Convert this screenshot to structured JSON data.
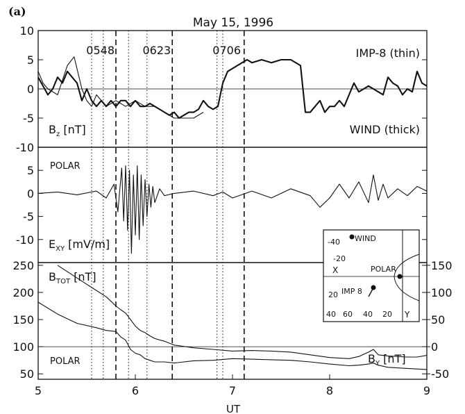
{
  "figure": {
    "panel_label": "(a)",
    "title": "May 15, 1996",
    "xlabel": "UT"
  },
  "colors": {
    "ink": "#111111",
    "background": "#ffffff"
  },
  "chart_data": {
    "type": "line",
    "x_unit": "hours UT",
    "xlim": [
      5,
      9
    ],
    "x_ticks": [
      5,
      6,
      7,
      8,
      9
    ],
    "dashed_lines_x": [
      5.8,
      6.38,
      7.12
    ],
    "dotted_lines_x": [
      5.55,
      5.67,
      5.93,
      6.12,
      6.84,
      6.9
    ],
    "time_markers": [
      {
        "label": "0548",
        "x": 5.8
      },
      {
        "label": "0623",
        "x": 6.38
      },
      {
        "label": "0706",
        "x": 7.1
      }
    ],
    "panels": [
      {
        "id": "bz",
        "ylabel": "B",
        "ylabel_sub": "z",
        "ylabel_unit": " [nT]",
        "ylim": [
          -10,
          10
        ],
        "y_ticks": [
          -10,
          -5,
          0,
          5,
          10
        ],
        "zero_line": true,
        "labels": {
          "thin": "IMP-8 (thin)",
          "thick": "WIND (thick)"
        },
        "series": [
          {
            "name": "IMP-8 (thin)",
            "style": "thin",
            "x": [
              5.0,
              5.05,
              5.1,
              5.2,
              5.3,
              5.37,
              5.45,
              5.5,
              5.55,
              5.6,
              5.7,
              5.8,
              5.9,
              6.0,
              6.1,
              6.2,
              6.3,
              6.4,
              6.5,
              6.6,
              6.7
            ],
            "y": [
              3,
              1,
              0,
              -1,
              4,
              5.5,
              0,
              -2,
              -3,
              -1,
              -3,
              -2,
              -3,
              -2,
              -3,
              -3,
              -4,
              -5,
              -5,
              -5,
              -4
            ]
          },
          {
            "name": "WIND (thick)",
            "style": "thick",
            "x": [
              5.0,
              5.05,
              5.1,
              5.15,
              5.2,
              5.25,
              5.3,
              5.35,
              5.4,
              5.45,
              5.5,
              5.55,
              5.6,
              5.65,
              5.7,
              5.75,
              5.8,
              5.85,
              5.9,
              5.95,
              6.0,
              6.05,
              6.1,
              6.15,
              6.2,
              6.25,
              6.3,
              6.35,
              6.4,
              6.45,
              6.5,
              6.55,
              6.6,
              6.65,
              6.7,
              6.75,
              6.8,
              6.85,
              6.9,
              6.95,
              7.0,
              7.05,
              7.1,
              7.15,
              7.2,
              7.3,
              7.4,
              7.5,
              7.6,
              7.7,
              7.75,
              7.8,
              7.85,
              7.9,
              7.95,
              8.0,
              8.05,
              8.1,
              8.15,
              8.2,
              8.25,
              8.3,
              8.35,
              8.4,
              8.45,
              8.5,
              8.55,
              8.6,
              8.65,
              8.7,
              8.75,
              8.8,
              8.85,
              8.9,
              8.95,
              9.0
            ],
            "y": [
              2,
              0.5,
              -1,
              0,
              2,
              1,
              3,
              2,
              1,
              -2,
              0,
              -2,
              -3,
              -2,
              -3,
              -2,
              -3,
              -2,
              -2,
              -3,
              -2,
              -3,
              -3,
              -2.5,
              -3,
              -3.5,
              -4,
              -4.5,
              -4,
              -5,
              -4.5,
              -4,
              -4,
              -3.5,
              -2,
              -3,
              -3.5,
              -3,
              1,
              3,
              3.5,
              4,
              4.5,
              5,
              4.5,
              5,
              4.5,
              5,
              5,
              4,
              -4,
              -4,
              -3,
              -2,
              -4,
              -3,
              -3,
              -2,
              -3,
              -1,
              1,
              -0.5,
              0,
              0.5,
              0,
              -0.5,
              -1,
              2,
              1,
              0.5,
              -1,
              0,
              -0.5,
              3,
              1,
              0.5
            ]
          }
        ]
      },
      {
        "id": "exy",
        "ylabel": "E",
        "ylabel_sub": "XY",
        "ylabel_unit": " [mV/m]",
        "spacecraft": "POLAR",
        "ylim": [
          -15,
          10
        ],
        "y_ticks": [
          -10,
          -5,
          0,
          5
        ],
        "zero_line": false,
        "series": [
          {
            "name": "POLAR E_XY",
            "style": "thin",
            "x": [
              5.0,
              5.2,
              5.4,
              5.6,
              5.7,
              5.78,
              5.82,
              5.86,
              5.88,
              5.9,
              5.92,
              5.94,
              5.96,
              5.98,
              6.0,
              6.02,
              6.04,
              6.06,
              6.08,
              6.1,
              6.12,
              6.14,
              6.16,
              6.18,
              6.2,
              6.25,
              6.3,
              6.4,
              6.6,
              6.8,
              6.9,
              7.0,
              7.2,
              7.4,
              7.6,
              7.8,
              7.9,
              8.0,
              8.1,
              8.2,
              8.3,
              8.4,
              8.45,
              8.5,
              8.55,
              8.6,
              8.7,
              8.8,
              8.9,
              9.0
            ],
            "y": [
              0,
              0.3,
              -0.3,
              0.5,
              -1,
              2,
              -4,
              5.5,
              -6,
              6,
              -8,
              5,
              -13,
              4,
              -9,
              6,
              -10,
              4,
              -7,
              3,
              -5,
              2,
              -3,
              1.5,
              -2,
              1,
              -0.5,
              0,
              0.5,
              -0.5,
              0.3,
              -1,
              0.5,
              -1,
              1,
              -0.5,
              -3,
              -1,
              2,
              -1,
              2.5,
              -2,
              4,
              -1.5,
              2,
              -1,
              1,
              -0.5,
              1.5,
              0.5
            ]
          }
        ]
      },
      {
        "id": "btot",
        "ylabel": "B",
        "ylabel_sub": "TOT",
        "ylabel_unit": " [nT]",
        "ylabel_right": "B",
        "ylabel_right_sub": "Y",
        "ylabel_right_unit": " [nT]",
        "spacecraft": "POLAR",
        "ylim": [
          40,
          255
        ],
        "y_ticks": [
          50,
          100,
          150,
          200,
          250
        ],
        "right_ylim": [
          -60,
          155
        ],
        "right_ticks": [
          -50,
          0,
          50,
          100,
          150
        ],
        "reference_line_left": 100,
        "series": [
          {
            "name": "B_TOT",
            "axis": "left",
            "style": "thin",
            "x": [
              5.0,
              5.2,
              5.4,
              5.6,
              5.7,
              5.8,
              5.85,
              5.9,
              5.95,
              6.0,
              6.05,
              6.1,
              6.15,
              6.2,
              6.3,
              6.4,
              6.6,
              6.8,
              7.0,
              7.2,
              7.4,
              7.6,
              7.8,
              8.0,
              8.2,
              8.3,
              8.4,
              8.45,
              8.5,
              8.6,
              8.8,
              9.0
            ],
            "y": [
              182,
              160,
              143,
              135,
              130,
              128,
              118,
              112,
              95,
              88,
              85,
              78,
              75,
              72,
              72,
              70,
              74,
              75,
              78,
              77,
              76,
              75,
              72,
              68,
              65,
              66,
              68,
              70,
              66,
              62,
              60,
              58
            ]
          },
          {
            "name": "B_Y",
            "axis": "right",
            "style": "thin",
            "x": [
              5.2,
              5.5,
              5.7,
              5.8,
              5.85,
              5.9,
              5.95,
              6.0,
              6.05,
              6.1,
              6.15,
              6.2,
              6.3,
              6.4,
              6.6,
              6.8,
              7.0,
              7.2,
              7.4,
              7.6,
              7.8,
              8.0,
              8.2,
              8.3,
              8.4,
              8.45,
              8.5,
              8.6,
              8.7,
              8.8,
              8.9,
              9.0
            ],
            "y": [
              150,
              115,
              92,
              75,
              68,
              62,
              50,
              38,
              30,
              26,
              20,
              15,
              10,
              3,
              -2,
              -5,
              -8,
              -7,
              -8,
              -10,
              -15,
              -20,
              -22,
              -18,
              -10,
              -5,
              -15,
              -17,
              -18,
              -19,
              -19,
              -16
            ]
          }
        ]
      }
    ]
  },
  "inset": {
    "label_wind": "WIND",
    "label_polar": "POLAR",
    "label_imp": "IMP 8",
    "axis_x": "X",
    "axis_y": "Y",
    "top_ticks": [
      "-40",
      "-20"
    ],
    "bottom_ticks": [
      "20",
      "40"
    ],
    "x_ticks": [
      "60",
      "40",
      "20"
    ]
  }
}
